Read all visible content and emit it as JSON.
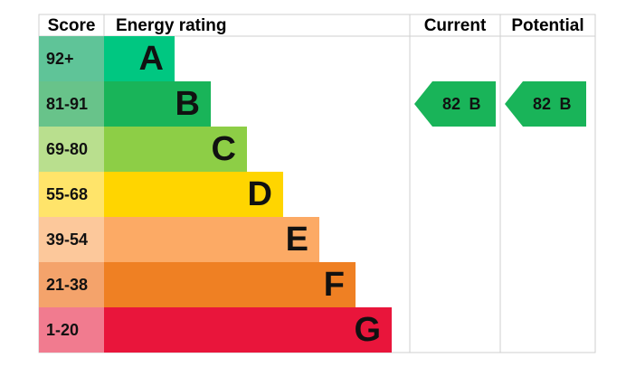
{
  "header": {
    "score": "Score",
    "energy_rating": "Energy rating",
    "current": "Current",
    "potential": "Potential"
  },
  "rows": [
    {
      "range": "92+",
      "letter": "A",
      "color": "#00c781",
      "score_color": "#5fc498"
    },
    {
      "range": "81-91",
      "letter": "B",
      "color": "#19b459",
      "score_color": "#68c38a"
    },
    {
      "range": "69-80",
      "letter": "C",
      "color": "#8dce46",
      "score_color": "#b9df8e"
    },
    {
      "range": "55-68",
      "letter": "D",
      "color": "#ffd500",
      "score_color": "#ffe46a"
    },
    {
      "range": "39-54",
      "letter": "E",
      "color": "#fcaa65",
      "score_color": "#fcc89b"
    },
    {
      "range": "21-38",
      "letter": "F",
      "color": "#ef8023",
      "score_color": "#f4a36b"
    },
    {
      "range": "1-20",
      "letter": "G",
      "color": "#e9153b",
      "score_color": "#f17b8f"
    }
  ],
  "current": {
    "score": 82,
    "rating": "B"
  },
  "potential": {
    "score": 82,
    "rating": "B"
  }
}
